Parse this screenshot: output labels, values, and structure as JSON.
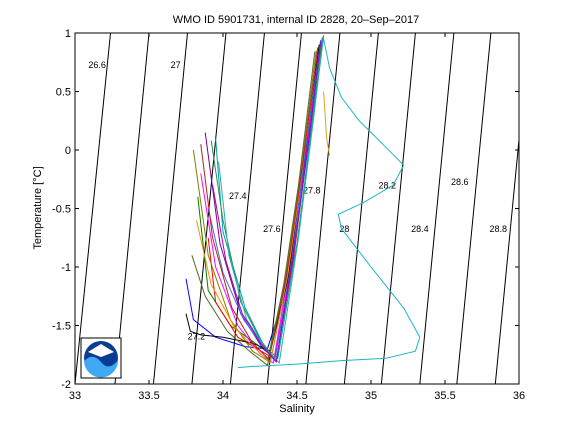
{
  "chart_data": {
    "type": "line",
    "title": "WMO ID 5901731, internal ID 2828, 20–Sep–2017",
    "xlabel": "Salinity",
    "ylabel": "Temperature [°C]",
    "xlim": [
      33,
      36
    ],
    "ylim": [
      -2,
      1
    ],
    "xticks": [
      "33",
      "33.5",
      "34",
      "34.5",
      "35",
      "35.5",
      "36"
    ],
    "yticks": [
      "1",
      "0.5",
      "0",
      "-0.5",
      "-1",
      "-1.5",
      "-2"
    ],
    "grid": false,
    "legend": "none",
    "isopycnals": [
      {
        "label": "26.6",
        "at": [
          33.15,
          0.7
        ]
      },
      {
        "label": "27",
        "at": [
          33.68,
          0.7
        ]
      },
      {
        "label": "27.2",
        "at": [
          33.82,
          -1.62
        ]
      },
      {
        "label": "27.4",
        "at": [
          34.1,
          -0.42
        ]
      },
      {
        "label": "27.6",
        "at": [
          34.33,
          -0.7
        ]
      },
      {
        "label": "27.8",
        "at": [
          34.6,
          -0.37
        ]
      },
      {
        "label": "28",
        "at": [
          34.82,
          -0.7
        ]
      },
      {
        "label": "28.2",
        "at": [
          35.11,
          -0.33
        ]
      },
      {
        "label": "28.4",
        "at": [
          35.33,
          -0.7
        ]
      },
      {
        "label": "28.6",
        "at": [
          35.6,
          -0.3
        ]
      },
      {
        "label": "28.8",
        "at": [
          35.86,
          -0.7
        ]
      }
    ],
    "isopycnal_lines": [
      {
        "bottom_s": 33.0,
        "top_s": 33.24
      },
      {
        "bottom_s": 33.27,
        "top_s": 33.5
      },
      {
        "bottom_s": 33.53,
        "top_s": 33.76
      },
      {
        "bottom_s": 33.79,
        "top_s": 34.02
      },
      {
        "bottom_s": 34.05,
        "top_s": 34.28
      },
      {
        "bottom_s": 34.3,
        "top_s": 34.53
      },
      {
        "bottom_s": 34.56,
        "top_s": 34.79
      },
      {
        "bottom_s": 34.82,
        "top_s": 35.05
      },
      {
        "bottom_s": 35.07,
        "top_s": 35.3
      },
      {
        "bottom_s": 35.33,
        "top_s": 35.56
      },
      {
        "bottom_s": 35.58,
        "top_s": 35.81
      },
      {
        "bottom_s": 35.84,
        "top_s": 36.07
      }
    ],
    "series": [
      {
        "color": "#1fb5c8",
        "x": [
          34.68,
          34.72,
          34.8,
          34.92,
          35.08,
          35.22,
          35.15,
          34.95,
          34.78,
          34.8,
          35.0,
          35.22,
          35.33,
          35.3,
          35.1,
          34.8,
          34.5,
          34.2,
          34.1
        ],
        "y": [
          0.95,
          0.7,
          0.45,
          0.25,
          0.05,
          -0.13,
          -0.3,
          -0.45,
          -0.55,
          -0.67,
          -1.0,
          -1.35,
          -1.6,
          -1.72,
          -1.78,
          -1.8,
          -1.83,
          -1.85,
          -1.86
        ]
      },
      {
        "color": "#0000ff",
        "x": [
          33.75,
          33.8,
          33.95,
          34.15,
          34.3,
          34.4,
          34.5,
          34.6,
          34.68
        ],
        "y": [
          -1.1,
          -1.45,
          -1.6,
          -1.68,
          -1.7,
          -1.3,
          -0.4,
          0.4,
          0.98
        ]
      },
      {
        "color": "#008000",
        "x": [
          33.83,
          33.9,
          34.05,
          34.25,
          34.33,
          34.45,
          34.55,
          34.65
        ],
        "y": [
          -0.4,
          -1.2,
          -1.5,
          -1.68,
          -1.75,
          -1.0,
          -0.1,
          0.9
        ]
      },
      {
        "color": "#ff0000",
        "x": [
          33.9,
          33.95,
          34.1,
          34.3,
          34.36,
          34.48,
          34.58,
          34.67
        ],
        "y": [
          -0.75,
          -1.3,
          -1.6,
          -1.75,
          -1.8,
          -0.9,
          0.1,
          0.95
        ]
      },
      {
        "color": "#800080",
        "x": [
          33.88,
          33.98,
          34.12,
          34.27,
          34.35,
          34.47,
          34.57,
          34.66
        ],
        "y": [
          0.15,
          -0.8,
          -1.4,
          -1.7,
          -1.78,
          -0.95,
          0.0,
          0.92
        ]
      },
      {
        "color": "#808000",
        "x": [
          33.8,
          33.9,
          34.05,
          34.2,
          34.3,
          34.42,
          34.52,
          34.63
        ],
        "y": [
          0.0,
          -0.9,
          -1.45,
          -1.72,
          -1.8,
          -1.1,
          -0.25,
          0.85
        ]
      },
      {
        "color": "#ff00ff",
        "x": [
          33.85,
          33.95,
          34.1,
          34.25,
          34.34,
          34.45,
          34.56,
          34.66
        ],
        "y": [
          -0.2,
          -1.0,
          -1.5,
          -1.74,
          -1.82,
          -1.0,
          -0.05,
          0.93
        ]
      },
      {
        "color": "#00a0a0",
        "x": [
          33.95,
          34.0,
          34.15,
          34.28,
          34.37,
          34.5,
          34.6,
          34.68
        ],
        "y": [
          0.1,
          -0.7,
          -1.35,
          -1.68,
          -1.78,
          -0.8,
          0.2,
          0.97
        ]
      },
      {
        "color": "#000000",
        "x": [
          33.75,
          33.78,
          33.85,
          34.0,
          34.2,
          34.32,
          34.44,
          34.55,
          34.65
        ],
        "y": [
          -1.4,
          -1.55,
          -1.58,
          -1.6,
          -1.65,
          -1.72,
          -1.1,
          -0.1,
          0.9
        ]
      },
      {
        "color": "#2e8b57",
        "x": [
          33.92,
          34.0,
          34.12,
          34.25,
          34.36,
          34.48,
          34.59,
          34.67
        ],
        "y": [
          0.08,
          -0.6,
          -1.3,
          -1.62,
          -1.8,
          -0.85,
          0.15,
          0.96
        ]
      },
      {
        "color": "#ff8c00",
        "x": [
          33.82,
          33.92,
          34.08,
          34.22,
          34.32,
          34.44,
          34.54,
          34.64
        ],
        "y": [
          -0.6,
          -1.15,
          -1.52,
          -1.7,
          -1.82,
          -1.05,
          -0.15,
          0.88
        ]
      },
      {
        "color": "#4169e1",
        "x": [
          33.9,
          34.0,
          34.14,
          34.27,
          34.35,
          34.46,
          34.56,
          34.66
        ],
        "y": [
          -0.5,
          -1.05,
          -1.45,
          -1.68,
          -1.8,
          -0.98,
          0.02,
          0.94
        ]
      },
      {
        "color": "#b22222",
        "x": [
          33.85,
          33.93,
          34.06,
          34.2,
          34.31,
          34.43,
          34.53,
          34.64
        ],
        "y": [
          0.05,
          -0.75,
          -1.35,
          -1.65,
          -1.79,
          -1.08,
          -0.2,
          0.87
        ]
      },
      {
        "color": "#20b2aa",
        "x": [
          33.97,
          34.04,
          34.16,
          34.29,
          34.38,
          34.51,
          34.61,
          34.68
        ],
        "y": [
          -0.1,
          -0.9,
          -1.45,
          -1.7,
          -1.82,
          -0.75,
          0.25,
          0.98
        ]
      },
      {
        "color": "#556b2f",
        "x": [
          33.79,
          33.88,
          34.03,
          34.18,
          34.3,
          34.41,
          34.51,
          34.62
        ],
        "y": [
          -0.9,
          -1.25,
          -1.55,
          -1.72,
          -1.84,
          -1.15,
          -0.3,
          0.84
        ]
      },
      {
        "color": "#9400d3",
        "x": [
          33.93,
          34.02,
          34.13,
          34.26,
          34.36,
          34.47,
          34.58,
          34.66
        ],
        "y": [
          -0.3,
          -0.95,
          -1.4,
          -1.66,
          -1.81,
          -0.92,
          0.08,
          0.93
        ]
      },
      {
        "color": "#daa520",
        "x": [
          34.68,
          34.7,
          34.72
        ],
        "y": [
          0.5,
          0.1,
          -0.05
        ]
      }
    ]
  }
}
